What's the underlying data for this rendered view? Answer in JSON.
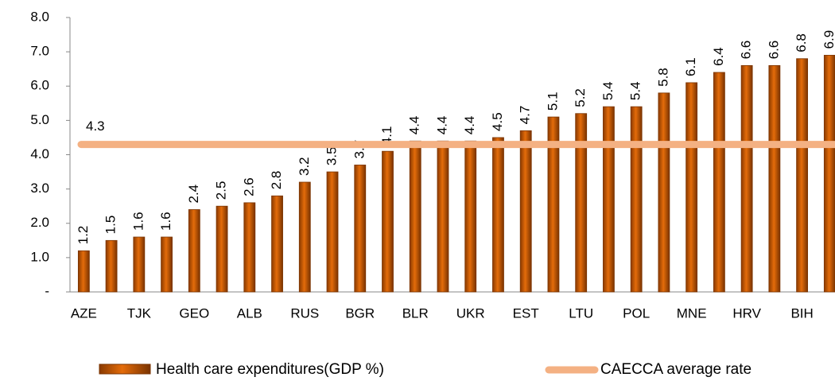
{
  "chart_data": {
    "type": "bar",
    "categories": [
      "AZE",
      null,
      "TJK",
      null,
      "GEO",
      null,
      "ALB",
      null,
      "RUS",
      null,
      "BGR",
      null,
      "BLR",
      null,
      "UKR",
      null,
      "EST",
      null,
      "LTU",
      null,
      "POL",
      null,
      "MNE",
      null,
      "HRV",
      null,
      "BIH",
      null
    ],
    "series": [
      {
        "name": "Health care expenditures(GDP %)",
        "color": "#e46c0a",
        "values": [
          1.2,
          1.5,
          1.6,
          1.6,
          2.4,
          2.5,
          2.6,
          2.8,
          3.2,
          3.5,
          3.7,
          4.1,
          4.4,
          4.4,
          4.4,
          4.5,
          4.7,
          5.1,
          5.2,
          5.4,
          5.4,
          5.8,
          6.1,
          6.4,
          6.6,
          6.6,
          6.8,
          6.9
        ]
      }
    ],
    "average": {
      "name": "CAECCA average rate",
      "value": 4.3,
      "color": "#f4b183"
    },
    "ylim": [
      0,
      8
    ],
    "yticks": [
      {
        "value": 0,
        "label": "-"
      },
      {
        "value": 1,
        "label": "1.0"
      },
      {
        "value": 2,
        "label": "2.0"
      },
      {
        "value": 3,
        "label": "3.0"
      },
      {
        "value": 4,
        "label": "4.0"
      },
      {
        "value": 5,
        "label": "5.0"
      },
      {
        "value": 6,
        "label": "6.0"
      },
      {
        "value": 7,
        "label": "7.0"
      },
      {
        "value": 8,
        "label": "8.0"
      }
    ],
    "grid": false
  }
}
